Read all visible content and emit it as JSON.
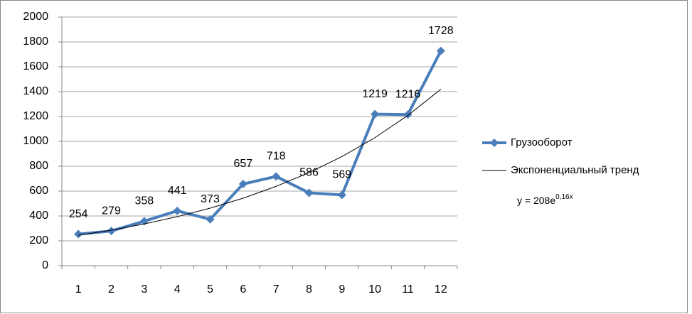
{
  "chart_data": {
    "type": "line",
    "categories": [
      "1",
      "2",
      "3",
      "4",
      "5",
      "6",
      "7",
      "8",
      "9",
      "10",
      "11",
      "12"
    ],
    "series": [
      {
        "name": "Грузооборот",
        "color": "#4a7ebb",
        "values": [
          254,
          279,
          358,
          441,
          373,
          657,
          718,
          586,
          569,
          1219,
          1216,
          1728
        ],
        "data_labels": true,
        "marker": "diamond"
      },
      {
        "name": "Экспоненциальный тренд",
        "color": "#000000",
        "values": [
          244,
          286,
          336,
          394,
          463,
          543,
          638,
          748,
          878,
          1030,
          1209,
          1419
        ],
        "data_labels": false,
        "marker": "none"
      }
    ],
    "trend_equation": {
      "base": "y = 208e",
      "exponent": "0,16x"
    },
    "ylim": [
      0,
      2000
    ],
    "yticks": [
      0,
      200,
      400,
      600,
      800,
      1000,
      1200,
      1400,
      1600,
      1800,
      2000
    ],
    "grid": true,
    "legend": "right"
  }
}
